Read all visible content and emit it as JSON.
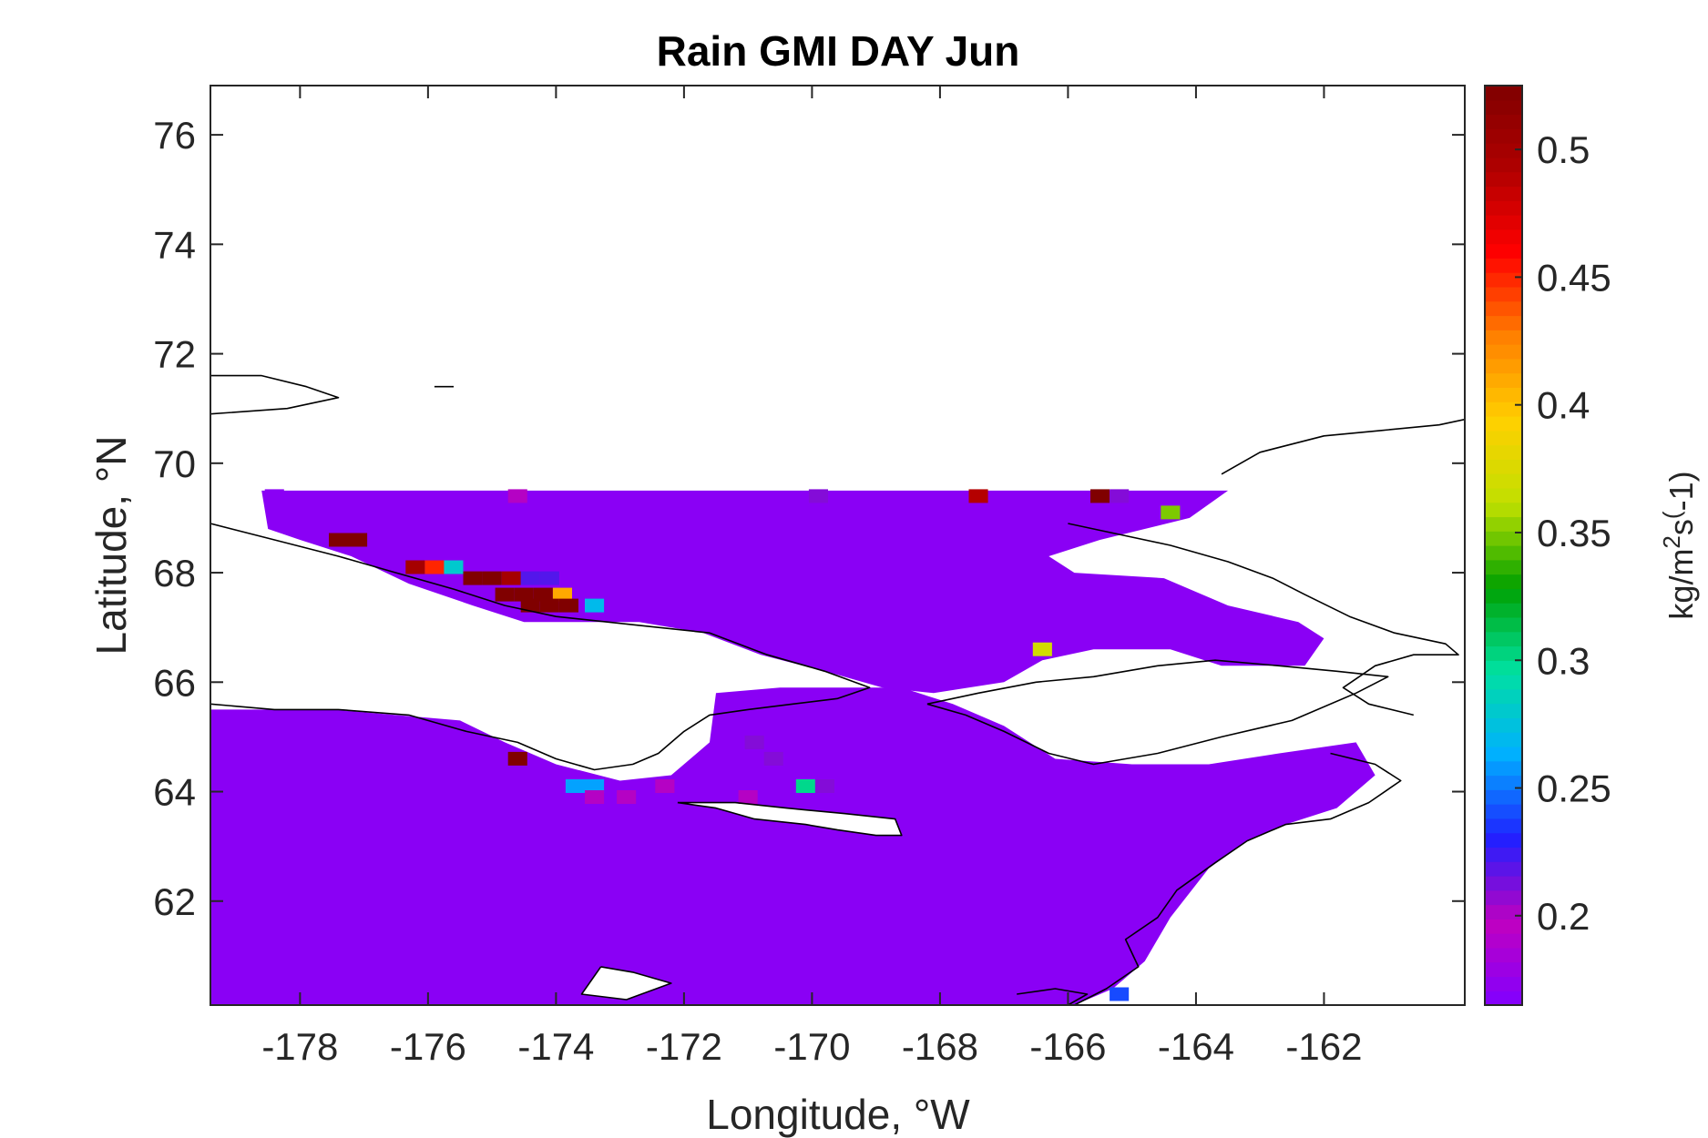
{
  "chart_data": {
    "type": "heatmap",
    "title": "Rain GMI DAY Jun",
    "xlabel": "Longitude, °W",
    "ylabel": "Latitude, °N",
    "colorbar_label": "kg/m^2s^(-1)",
    "xlim": [
      -179.4,
      -159.8
    ],
    "ylim": [
      60.1,
      76.9
    ],
    "xticks": [
      -178,
      -176,
      -174,
      -172,
      -170,
      -168,
      -166,
      -164,
      -162
    ],
    "xtick_labels": [
      "-178",
      "-176",
      "-174",
      "-172",
      "-170",
      "-168",
      "-166",
      "-164",
      "-162"
    ],
    "yticks": [
      62,
      64,
      66,
      68,
      70,
      72,
      74,
      76
    ],
    "ytick_labels": [
      "62",
      "64",
      "66",
      "68",
      "70",
      "72",
      "74",
      "76"
    ],
    "clim": [
      0.165,
      0.525
    ],
    "colorbar_ticks": [
      0.2,
      0.25,
      0.3,
      0.35,
      0.4,
      0.45,
      0.5
    ],
    "colorbar_tick_labels": [
      "0.2",
      "0.25",
      "0.3",
      "0.35",
      "0.4",
      "0.45",
      "0.5"
    ],
    "colormap": [
      "#8000ff",
      "#c000c0",
      "#2020ff",
      "#00b0ff",
      "#00e0a0",
      "#00a000",
      "#c0e000",
      "#ffd000",
      "#ff8000",
      "#ff0000",
      "#b00000",
      "#800000"
    ],
    "grid": false,
    "background_value": 0.17,
    "ocean_regions": [
      [
        [
          -179.4,
          60.1
        ],
        [
          -179.4,
          65.5
        ],
        [
          -177.5,
          65.5
        ],
        [
          -176.5,
          65.4
        ],
        [
          -175.5,
          65.3
        ],
        [
          -174.8,
          64.9
        ],
        [
          -174.0,
          64.5
        ],
        [
          -173.0,
          64.2
        ],
        [
          -172.2,
          64.3
        ],
        [
          -171.6,
          64.9
        ],
        [
          -171.5,
          65.8
        ],
        [
          -170.5,
          65.9
        ],
        [
          -169.5,
          65.9
        ],
        [
          -168.6,
          65.9
        ],
        [
          -167.8,
          65.6
        ],
        [
          -167.0,
          65.2
        ],
        [
          -166.2,
          64.6
        ],
        [
          -165.0,
          64.5
        ],
        [
          -163.8,
          64.5
        ],
        [
          -162.7,
          64.7
        ],
        [
          -161.5,
          64.9
        ],
        [
          -161.2,
          64.3
        ],
        [
          -161.8,
          63.7
        ],
        [
          -162.6,
          63.4
        ],
        [
          -163.2,
          63.1
        ],
        [
          -163.8,
          62.6
        ],
        [
          -164.4,
          61.7
        ],
        [
          -164.8,
          60.9
        ],
        [
          -165.3,
          60.4
        ],
        [
          -165.9,
          60.1
        ]
      ],
      [
        [
          -178.6,
          69.5
        ],
        [
          -163.5,
          69.5
        ],
        [
          -164.1,
          69.0
        ],
        [
          -165.5,
          68.6
        ],
        [
          -166.3,
          68.3
        ],
        [
          -165.9,
          68.0
        ],
        [
          -164.5,
          67.9
        ],
        [
          -163.5,
          67.4
        ],
        [
          -162.4,
          67.1
        ],
        [
          -162.0,
          66.8
        ],
        [
          -162.3,
          66.3
        ],
        [
          -163.6,
          66.3
        ],
        [
          -164.4,
          66.6
        ],
        [
          -165.6,
          66.6
        ],
        [
          -166.4,
          66.4
        ],
        [
          -167.0,
          66.0
        ],
        [
          -168.1,
          65.8
        ],
        [
          -168.9,
          65.9
        ],
        [
          -169.8,
          66.2
        ],
        [
          -170.8,
          66.5
        ],
        [
          -171.7,
          66.9
        ],
        [
          -172.7,
          67.1
        ],
        [
          -173.5,
          67.1
        ],
        [
          -174.5,
          67.1
        ],
        [
          -175.3,
          67.4
        ],
        [
          -176.3,
          67.8
        ],
        [
          -177.2,
          68.3
        ],
        [
          -178.0,
          68.6
        ],
        [
          -178.5,
          68.8
        ]
      ]
    ],
    "land_masks": [
      [
        [
          -172.1,
          63.8
        ],
        [
          -171.5,
          63.7
        ],
        [
          -170.9,
          63.5
        ],
        [
          -170.1,
          63.4
        ],
        [
          -169.6,
          63.3
        ],
        [
          -169.0,
          63.2
        ],
        [
          -168.6,
          63.2
        ],
        [
          -168.7,
          63.5
        ],
        [
          -169.5,
          63.6
        ],
        [
          -170.4,
          63.7
        ],
        [
          -171.2,
          63.8
        ]
      ],
      [
        [
          -173.3,
          60.8
        ],
        [
          -172.8,
          60.7
        ],
        [
          -172.2,
          60.5
        ],
        [
          -172.9,
          60.2
        ],
        [
          -173.6,
          60.3
        ]
      ]
    ],
    "cells": [
      {
        "lon": -178.4,
        "lat": 69.4,
        "value": 0.17
      },
      {
        "lon": -174.6,
        "lat": 69.4,
        "value": 0.2
      },
      {
        "lon": -169.9,
        "lat": 69.4,
        "value": 0.21
      },
      {
        "lon": -167.4,
        "lat": 69.4,
        "value": 0.49
      },
      {
        "lon": -165.5,
        "lat": 69.4,
        "value": 0.525
      },
      {
        "lon": -165.2,
        "lat": 69.4,
        "value": 0.21
      },
      {
        "lon": -164.4,
        "lat": 69.1,
        "value": 0.35
      },
      {
        "lon": -177.4,
        "lat": 68.6,
        "value": 0.525
      },
      {
        "lon": -177.1,
        "lat": 68.6,
        "value": 0.525
      },
      {
        "lon": -176.2,
        "lat": 68.1,
        "value": 0.5
      },
      {
        "lon": -175.9,
        "lat": 68.1,
        "value": 0.45
      },
      {
        "lon": -175.6,
        "lat": 68.1,
        "value": 0.28
      },
      {
        "lon": -175.3,
        "lat": 67.9,
        "value": 0.525
      },
      {
        "lon": -175.0,
        "lat": 67.9,
        "value": 0.525
      },
      {
        "lon": -174.7,
        "lat": 67.9,
        "value": 0.5
      },
      {
        "lon": -174.4,
        "lat": 67.9,
        "value": 0.22
      },
      {
        "lon": -174.1,
        "lat": 67.9,
        "value": 0.22
      },
      {
        "lon": -174.8,
        "lat": 67.6,
        "value": 0.525
      },
      {
        "lon": -174.5,
        "lat": 67.6,
        "value": 0.525
      },
      {
        "lon": -174.2,
        "lat": 67.6,
        "value": 0.525
      },
      {
        "lon": -173.9,
        "lat": 67.6,
        "value": 0.41
      },
      {
        "lon": -174.4,
        "lat": 67.4,
        "value": 0.525
      },
      {
        "lon": -174.1,
        "lat": 67.4,
        "value": 0.525
      },
      {
        "lon": -173.8,
        "lat": 67.4,
        "value": 0.525
      },
      {
        "lon": -173.4,
        "lat": 67.4,
        "value": 0.27
      },
      {
        "lon": -166.4,
        "lat": 66.6,
        "value": 0.37
      },
      {
        "lon": -174.6,
        "lat": 64.6,
        "value": 0.525
      },
      {
        "lon": -170.9,
        "lat": 64.9,
        "value": 0.21
      },
      {
        "lon": -170.6,
        "lat": 64.6,
        "value": 0.21
      },
      {
        "lon": -173.7,
        "lat": 64.1,
        "value": 0.26
      },
      {
        "lon": -173.4,
        "lat": 64.1,
        "value": 0.26
      },
      {
        "lon": -172.3,
        "lat": 64.1,
        "value": 0.2
      },
      {
        "lon": -170.1,
        "lat": 64.1,
        "value": 0.3
      },
      {
        "lon": -169.8,
        "lat": 64.1,
        "value": 0.21
      },
      {
        "lon": -173.4,
        "lat": 63.9,
        "value": 0.2
      },
      {
        "lon": -172.9,
        "lat": 63.9,
        "value": 0.2
      },
      {
        "lon": -171.0,
        "lat": 63.9,
        "value": 0.2
      },
      {
        "lon": -165.2,
        "lat": 60.3,
        "value": 0.24
      }
    ],
    "coastlines": [
      [
        [
          -179.4,
          71.6
        ],
        [
          -178.6,
          71.6
        ],
        [
          -177.9,
          71.4
        ],
        [
          -177.4,
          71.2
        ],
        [
          -178.2,
          71.0
        ],
        [
          -179.4,
          70.9
        ]
      ],
      [
        [
          -179.4,
          68.9
        ],
        [
          -178.4,
          68.6
        ],
        [
          -177.4,
          68.3
        ],
        [
          -176.5,
          68.0
        ],
        [
          -175.6,
          67.7
        ],
        [
          -174.8,
          67.4
        ],
        [
          -174.0,
          67.2
        ],
        [
          -173.2,
          67.1
        ],
        [
          -172.4,
          67.0
        ],
        [
          -171.6,
          66.9
        ],
        [
          -170.7,
          66.5
        ],
        [
          -169.8,
          66.2
        ],
        [
          -169.1,
          65.9
        ],
        [
          -169.6,
          65.7
        ],
        [
          -170.3,
          65.6
        ],
        [
          -171.0,
          65.5
        ],
        [
          -171.6,
          65.4
        ],
        [
          -172.0,
          65.1
        ],
        [
          -172.4,
          64.7
        ],
        [
          -172.8,
          64.5
        ],
        [
          -173.4,
          64.4
        ],
        [
          -174.0,
          64.6
        ],
        [
          -174.6,
          64.9
        ],
        [
          -175.4,
          65.1
        ],
        [
          -176.3,
          65.4
        ],
        [
          -177.4,
          65.5
        ],
        [
          -178.4,
          65.5
        ],
        [
          -179.4,
          65.6
        ]
      ],
      [
        [
          -172.1,
          63.8
        ],
        [
          -171.5,
          63.7
        ],
        [
          -170.9,
          63.5
        ],
        [
          -170.1,
          63.4
        ],
        [
          -169.6,
          63.3
        ],
        [
          -169.0,
          63.2
        ],
        [
          -168.6,
          63.2
        ],
        [
          -168.7,
          63.5
        ],
        [
          -169.5,
          63.6
        ],
        [
          -170.4,
          63.7
        ],
        [
          -171.2,
          63.8
        ],
        [
          -172.1,
          63.8
        ]
      ],
      [
        [
          -173.3,
          60.8
        ],
        [
          -172.8,
          60.7
        ],
        [
          -172.2,
          60.5
        ],
        [
          -172.9,
          60.2
        ],
        [
          -173.6,
          60.3
        ],
        [
          -173.3,
          60.8
        ]
      ],
      [
        [
          -168.2,
          65.6
        ],
        [
          -167.4,
          65.8
        ],
        [
          -166.5,
          66.0
        ],
        [
          -165.6,
          66.1
        ],
        [
          -164.6,
          66.3
        ],
        [
          -163.7,
          66.4
        ],
        [
          -162.7,
          66.3
        ],
        [
          -161.8,
          66.2
        ],
        [
          -161.0,
          66.1
        ],
        [
          -161.5,
          65.8
        ],
        [
          -162.5,
          65.3
        ],
        [
          -163.6,
          65.0
        ],
        [
          -164.6,
          64.7
        ],
        [
          -165.6,
          64.5
        ],
        [
          -166.3,
          64.7
        ],
        [
          -167.0,
          65.1
        ],
        [
          -167.6,
          65.4
        ],
        [
          -168.2,
          65.6
        ]
      ],
      [
        [
          -166.0,
          68.9
        ],
        [
          -165.2,
          68.7
        ],
        [
          -164.4,
          68.5
        ],
        [
          -163.5,
          68.2
        ],
        [
          -162.8,
          67.9
        ],
        [
          -162.3,
          67.6
        ],
        [
          -161.6,
          67.2
        ],
        [
          -160.9,
          66.9
        ],
        [
          -160.1,
          66.7
        ],
        [
          -159.9,
          66.5
        ],
        [
          -160.6,
          66.5
        ],
        [
          -161.2,
          66.3
        ],
        [
          -161.7,
          65.9
        ],
        [
          -161.3,
          65.6
        ],
        [
          -160.6,
          65.4
        ]
      ],
      [
        [
          -163.6,
          69.8
        ],
        [
          -163.0,
          70.2
        ],
        [
          -162.0,
          70.5
        ],
        [
          -161.1,
          70.6
        ],
        [
          -160.2,
          70.7
        ],
        [
          -159.8,
          70.8
        ]
      ],
      [
        [
          -161.9,
          64.7
        ],
        [
          -161.2,
          64.5
        ],
        [
          -160.8,
          64.2
        ],
        [
          -161.3,
          63.8
        ],
        [
          -161.9,
          63.5
        ],
        [
          -162.6,
          63.4
        ],
        [
          -163.2,
          63.1
        ],
        [
          -163.7,
          62.7
        ],
        [
          -164.3,
          62.2
        ],
        [
          -164.6,
          61.7
        ],
        [
          -165.1,
          61.3
        ],
        [
          -164.9,
          60.8
        ],
        [
          -165.4,
          60.4
        ],
        [
          -165.9,
          60.1
        ]
      ],
      [
        [
          -166.8,
          60.3
        ],
        [
          -166.2,
          60.4
        ],
        [
          -165.7,
          60.3
        ],
        [
          -166.0,
          60.1
        ]
      ],
      [
        [
          -175.9,
          71.4
        ],
        [
          -175.6,
          71.4
        ]
      ]
    ]
  }
}
